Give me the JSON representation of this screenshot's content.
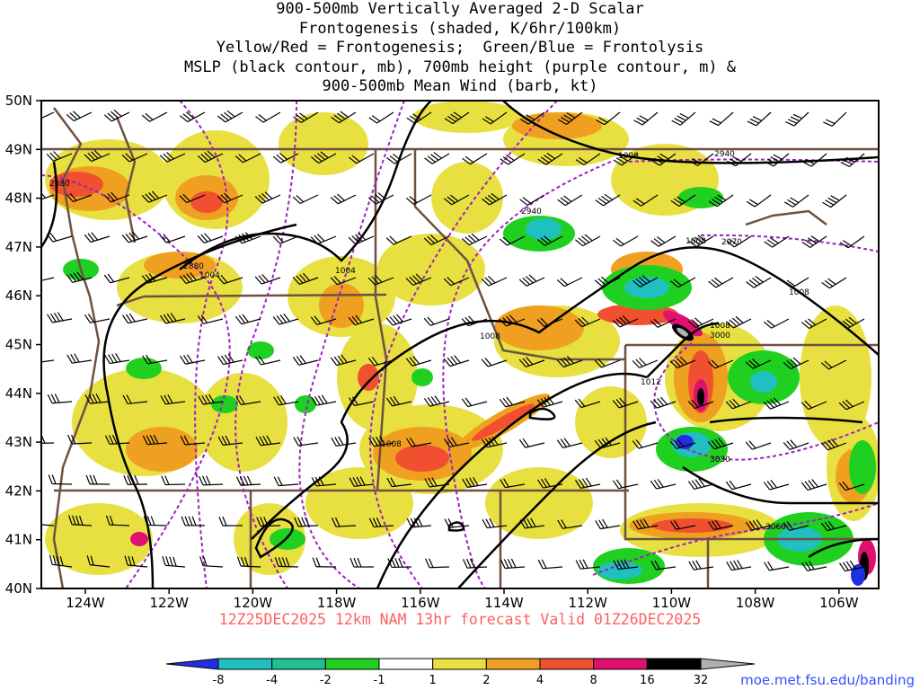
{
  "title_lines": [
    "900-500mb Vertically Averaged 2-D Scalar",
    "Frontogenesis (shaded, K/6hr/100km)",
    "Yellow/Red = Frontogenesis;  Green/Blue = Frontolysis",
    "MSLP (black contour, mb), 700mb height (purple contour, m) &",
    "900-500mb Mean Wind (barb, kt)"
  ],
  "lat_labels": [
    "50N",
    "49N",
    "48N",
    "47N",
    "46N",
    "45N",
    "44N",
    "43N",
    "42N",
    "41N",
    "40N"
  ],
  "lon_labels": [
    "124W",
    "122W",
    "120W",
    "118W",
    "116W",
    "114W",
    "112W",
    "110W",
    "108W",
    "106W"
  ],
  "isobar_labels": [
    "1008",
    "1008",
    "1008",
    "1004",
    "1004",
    "1008",
    "1008",
    "1008",
    "1012",
    "1008"
  ],
  "height_labels": [
    "2940",
    "2940",
    "2970",
    "2880",
    "2880",
    "3000",
    "3030",
    "3060"
  ],
  "footer": "12Z25DEC2025 12km NAM 13hr forecast Valid 01Z26DEC2025",
  "credit": "moe.met.fsu.edu/banding",
  "colorbar": {
    "ticks": [
      "-8",
      "-4",
      "-2",
      "-1",
      "1",
      "2",
      "4",
      "8",
      "16",
      "32"
    ],
    "colors": {
      "below": "#2030e0",
      "m8_m4": "#20c0c0",
      "m4_m2": "#20c090",
      "m2_m1": "#20d020",
      "m1_1": "#ffffff",
      "1_2": "#e8e040",
      "2_4": "#f0a020",
      "4_8": "#f05030",
      "8_16": "#e01070",
      "16_32": "#000000",
      "above": "#b0b0b0"
    }
  },
  "colors": {
    "isobar": "#000000",
    "height_contour": "#a020c0",
    "borders": "#705040",
    "barb": "#000000"
  }
}
